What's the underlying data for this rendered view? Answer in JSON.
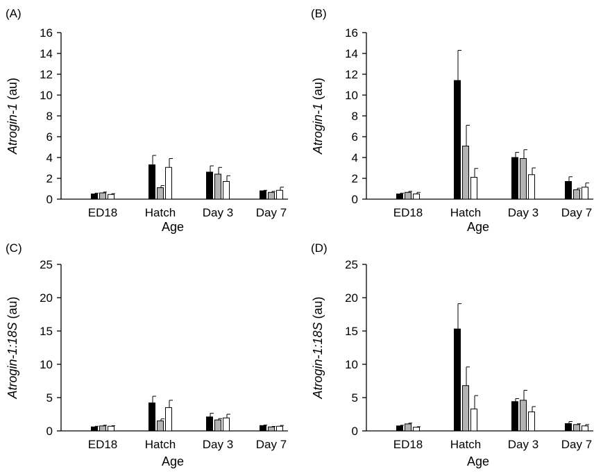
{
  "colors": {
    "series": [
      "#000000",
      "#b3b3b3",
      "#ffffff"
    ],
    "stroke": "#000000"
  },
  "chart_data": [
    {
      "type": "bar",
      "panel_label": "(A)",
      "categories": [
        "ED18",
        "Hatch",
        "Day 3",
        "Day 7"
      ],
      "xlabel": "Age",
      "ylabel_italic": "Atrogin-1",
      "ylabel_rest": " (au)",
      "ylim": [
        0,
        16
      ],
      "yticks": [
        0,
        2,
        4,
        6,
        8,
        10,
        12,
        14,
        16
      ],
      "series": [
        {
          "values": [
            0.5,
            3.3,
            2.6,
            0.8
          ],
          "errors": [
            0.08,
            0.9,
            0.6,
            0.05
          ]
        },
        {
          "values": [
            0.6,
            1.1,
            2.4,
            0.65
          ],
          "errors": [
            0.08,
            0.2,
            0.65,
            0.1
          ]
        },
        {
          "values": [
            0.45,
            3.05,
            1.7,
            0.85
          ],
          "errors": [
            0.08,
            0.85,
            0.55,
            0.3
          ]
        }
      ]
    },
    {
      "type": "bar",
      "panel_label": "(B)",
      "categories": [
        "ED18",
        "Hatch",
        "Day 3",
        "Day 7"
      ],
      "xlabel": "Age",
      "ylabel_italic": "Atrogin-1",
      "ylabel_rest": " (au)",
      "ylim": [
        0,
        16
      ],
      "yticks": [
        0,
        2,
        4,
        6,
        8,
        10,
        12,
        14,
        16
      ],
      "series": [
        {
          "values": [
            0.5,
            11.4,
            4.0,
            1.7
          ],
          "errors": [
            0.08,
            2.9,
            0.5,
            0.45
          ]
        },
        {
          "values": [
            0.65,
            5.1,
            3.9,
            0.9
          ],
          "errors": [
            0.1,
            2.0,
            0.85,
            0.15
          ]
        },
        {
          "values": [
            0.5,
            2.1,
            2.35,
            1.15
          ],
          "errors": [
            0.15,
            0.85,
            0.65,
            0.4
          ]
        }
      ]
    },
    {
      "type": "bar",
      "panel_label": "(C)",
      "categories": [
        "ED18",
        "Hatch",
        "Day 3",
        "Day 7"
      ],
      "xlabel": "Age",
      "ylabel_italic": "Atrogin-1:18S",
      "ylabel_rest": " (au)",
      "ylim": [
        0,
        25
      ],
      "yticks": [
        0,
        5,
        10,
        15,
        20,
        25
      ],
      "series": [
        {
          "values": [
            0.6,
            4.2,
            2.1,
            0.8
          ],
          "errors": [
            0.1,
            1.0,
            0.55,
            0.08
          ]
        },
        {
          "values": [
            0.75,
            1.5,
            1.65,
            0.6
          ],
          "errors": [
            0.1,
            0.3,
            0.2,
            0.08
          ]
        },
        {
          "values": [
            0.7,
            3.5,
            1.95,
            0.7
          ],
          "errors": [
            0.08,
            1.1,
            0.55,
            0.12
          ]
        }
      ]
    },
    {
      "type": "bar",
      "panel_label": "(D)",
      "categories": [
        "ED18",
        "Hatch",
        "Day 3",
        "Day 7"
      ],
      "xlabel": "Age",
      "ylabel_italic": "Atrogin-1:18S",
      "ylabel_rest": " (au)",
      "ylim": [
        0,
        25
      ],
      "yticks": [
        0,
        5,
        10,
        15,
        20,
        25
      ],
      "series": [
        {
          "values": [
            0.75,
            15.3,
            4.4,
            1.1
          ],
          "errors": [
            0.1,
            3.8,
            0.45,
            0.3
          ]
        },
        {
          "values": [
            1.05,
            6.8,
            4.6,
            0.95
          ],
          "errors": [
            0.12,
            2.8,
            1.5,
            0.12
          ]
        },
        {
          "values": [
            0.55,
            3.3,
            2.85,
            0.75
          ],
          "errors": [
            0.08,
            2.0,
            0.8,
            0.2
          ]
        }
      ]
    }
  ]
}
